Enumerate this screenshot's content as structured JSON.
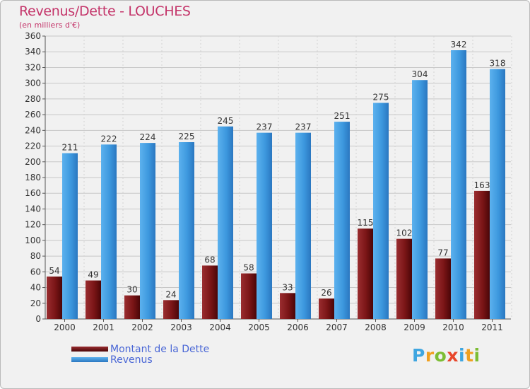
{
  "header": {
    "title": "Revenus/Dette - LOUCHES",
    "subtitle": "(en milliers d'€)"
  },
  "chart_data": {
    "type": "bar",
    "categories": [
      "2000",
      "2001",
      "2002",
      "2003",
      "2004",
      "2005",
      "2006",
      "2007",
      "2008",
      "2009",
      "2010",
      "2011"
    ],
    "series": [
      {
        "name": "Montant de la Dette",
        "color": "#7a1516",
        "values": [
          54,
          49,
          30,
          24,
          68,
          58,
          33,
          26,
          115,
          102,
          77,
          163
        ]
      },
      {
        "name": "Revenus",
        "color": "#3d8fd6",
        "values": [
          211,
          222,
          224,
          225,
          245,
          237,
          237,
          251,
          275,
          304,
          342,
          318
        ]
      }
    ],
    "ylim": [
      0,
      360
    ],
    "yticks": [
      0,
      20,
      40,
      60,
      80,
      100,
      120,
      140,
      160,
      180,
      200,
      220,
      240,
      260,
      280,
      300,
      320,
      340,
      360
    ],
    "grid": true,
    "legend_position": "bottom-left"
  },
  "legend": {
    "items": [
      {
        "label": "Montant de la Dette",
        "color": "#7a1516"
      },
      {
        "label": "Revenus",
        "color": "#3d8fd6"
      }
    ]
  },
  "logo": {
    "letters": [
      {
        "char": "P",
        "color": "#3fa6e0"
      },
      {
        "char": "r",
        "color": "#f0a020"
      },
      {
        "char": "o",
        "color": "#7cbd34"
      },
      {
        "char": "x",
        "color": "#e8462b"
      },
      {
        "char": "i",
        "color": "#3fa6e0"
      },
      {
        "char": "t",
        "color": "#f0a020"
      },
      {
        "char": "i",
        "color": "#7cbd34"
      }
    ]
  }
}
